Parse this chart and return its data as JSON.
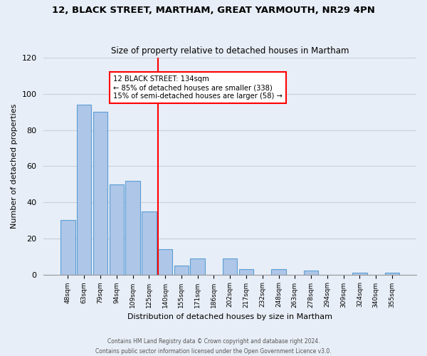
{
  "title": "12, BLACK STREET, MARTHAM, GREAT YARMOUTH, NR29 4PN",
  "subtitle": "Size of property relative to detached houses in Martham",
  "xlabel": "Distribution of detached houses by size in Martham",
  "ylabel": "Number of detached properties",
  "bar_labels": [
    "48sqm",
    "63sqm",
    "79sqm",
    "94sqm",
    "109sqm",
    "125sqm",
    "140sqm",
    "155sqm",
    "171sqm",
    "186sqm",
    "202sqm",
    "217sqm",
    "232sqm",
    "248sqm",
    "263sqm",
    "278sqm",
    "294sqm",
    "309sqm",
    "324sqm",
    "340sqm",
    "355sqm"
  ],
  "bar_values": [
    30,
    94,
    90,
    50,
    52,
    35,
    14,
    5,
    9,
    0,
    9,
    3,
    0,
    3,
    0,
    2,
    0,
    0,
    1,
    0,
    1
  ],
  "bar_color": "#aec6e8",
  "bar_edgecolor": "#5a9fd4",
  "bg_color": "#e8eef7",
  "grid_color": "#c8d0dc",
  "vline_color": "red",
  "annotation_text": "12 BLACK STREET: 134sqm\n← 85% of detached houses are smaller (338)\n15% of semi-detached houses are larger (58) →",
  "annotation_box_color": "white",
  "annotation_border_color": "red",
  "ylim": [
    0,
    120
  ],
  "yticks": [
    0,
    20,
    40,
    60,
    80,
    100,
    120
  ],
  "footer_line1": "Contains HM Land Registry data © Crown copyright and database right 2024.",
  "footer_line2": "Contains public sector information licensed under the Open Government Licence v3.0."
}
